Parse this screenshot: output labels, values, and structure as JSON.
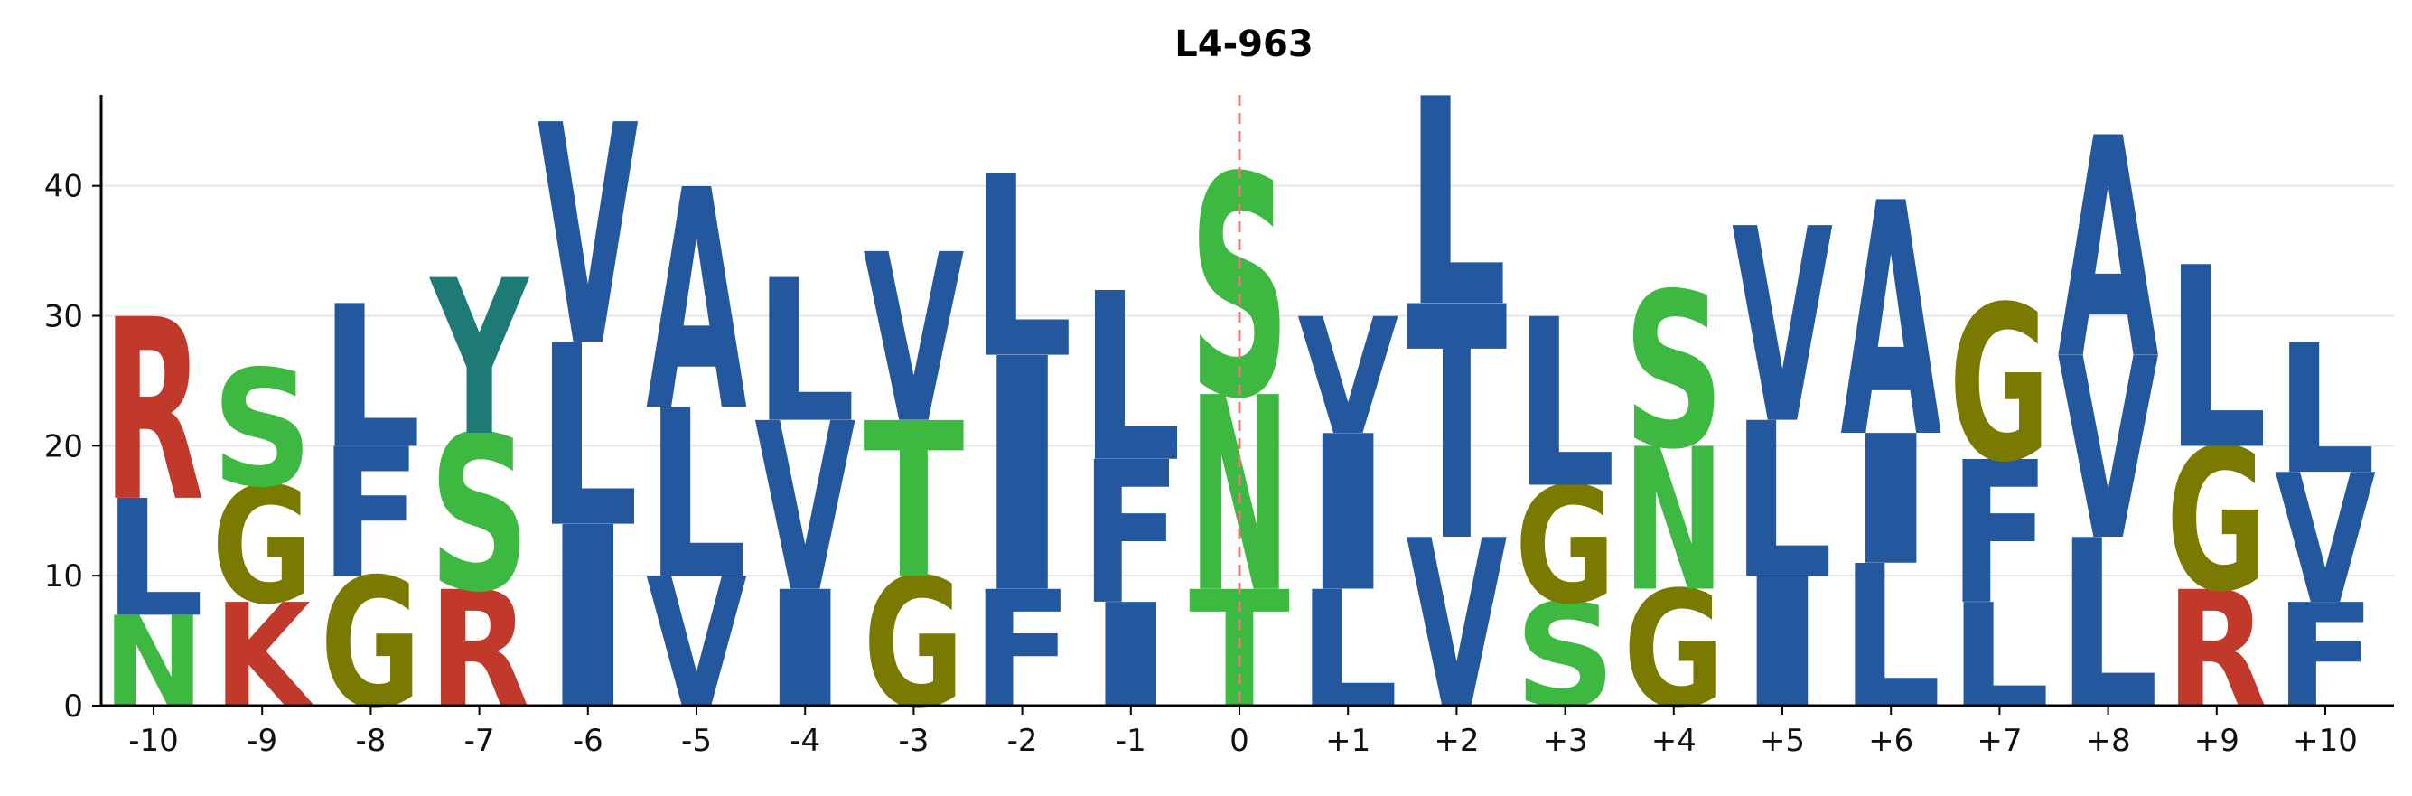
{
  "chart_data": {
    "type": "sequence_logo",
    "title": "L4-963",
    "xlabel": "",
    "ylabel": "",
    "ylim": [
      0,
      47
    ],
    "yticks": [
      0,
      10,
      20,
      30,
      40
    ],
    "grid": true,
    "center_line": {
      "x": "0",
      "style": "dashed",
      "color": "#e87a7a"
    },
    "colors": {
      "hydrophobic": "#24589e",
      "polar": "#3db840",
      "glycine": "#7a7a00",
      "basic": "#c0392b",
      "tyrosine": "#1e7a74"
    },
    "positions": [
      {
        "label": "-10",
        "letters": [
          {
            "aa": "N",
            "count": 7,
            "group": "polar"
          },
          {
            "aa": "L",
            "count": 9,
            "group": "hydrophobic"
          },
          {
            "aa": "R",
            "count": 14,
            "group": "basic"
          }
        ]
      },
      {
        "label": "-9",
        "letters": [
          {
            "aa": "K",
            "count": 8,
            "group": "basic"
          },
          {
            "aa": "G",
            "count": 9,
            "group": "glycine"
          },
          {
            "aa": "S",
            "count": 9,
            "group": "polar"
          }
        ]
      },
      {
        "label": "-8",
        "letters": [
          {
            "aa": "G",
            "count": 10,
            "group": "glycine"
          },
          {
            "aa": "F",
            "count": 10,
            "group": "hydrophobic"
          },
          {
            "aa": "L",
            "count": 11,
            "group": "hydrophobic"
          }
        ]
      },
      {
        "label": "-7",
        "letters": [
          {
            "aa": "R",
            "count": 9,
            "group": "basic"
          },
          {
            "aa": "S",
            "count": 12,
            "group": "polar"
          },
          {
            "aa": "Y",
            "count": 12,
            "group": "tyrosine"
          }
        ]
      },
      {
        "label": "-6",
        "letters": [
          {
            "aa": "I",
            "count": 14,
            "group": "hydrophobic"
          },
          {
            "aa": "L",
            "count": 14,
            "group": "hydrophobic"
          },
          {
            "aa": "V",
            "count": 17,
            "group": "hydrophobic"
          }
        ]
      },
      {
        "label": "-5",
        "letters": [
          {
            "aa": "V",
            "count": 10,
            "group": "hydrophobic"
          },
          {
            "aa": "L",
            "count": 13,
            "group": "hydrophobic"
          },
          {
            "aa": "A",
            "count": 17,
            "group": "hydrophobic"
          }
        ]
      },
      {
        "label": "-4",
        "letters": [
          {
            "aa": "I",
            "count": 9,
            "group": "hydrophobic"
          },
          {
            "aa": "V",
            "count": 13,
            "group": "hydrophobic"
          },
          {
            "aa": "L",
            "count": 11,
            "group": "hydrophobic"
          }
        ]
      },
      {
        "label": "-3",
        "letters": [
          {
            "aa": "G",
            "count": 10,
            "group": "glycine"
          },
          {
            "aa": "T",
            "count": 12,
            "group": "polar"
          },
          {
            "aa": "V",
            "count": 13,
            "group": "hydrophobic"
          }
        ]
      },
      {
        "label": "-2",
        "letters": [
          {
            "aa": "F",
            "count": 9,
            "group": "hydrophobic"
          },
          {
            "aa": "I",
            "count": 18,
            "group": "hydrophobic"
          },
          {
            "aa": "L",
            "count": 14,
            "group": "hydrophobic"
          }
        ]
      },
      {
        "label": "-1",
        "letters": [
          {
            "aa": "I",
            "count": 8,
            "group": "hydrophobic"
          },
          {
            "aa": "F",
            "count": 11,
            "group": "hydrophobic"
          },
          {
            "aa": "L",
            "count": 13,
            "group": "hydrophobic"
          }
        ]
      },
      {
        "label": "0",
        "letters": [
          {
            "aa": "T",
            "count": 9,
            "group": "polar"
          },
          {
            "aa": "N",
            "count": 15,
            "group": "polar"
          },
          {
            "aa": "S",
            "count": 17,
            "group": "polar"
          }
        ]
      },
      {
        "label": "+1",
        "letters": [
          {
            "aa": "L",
            "count": 9,
            "group": "hydrophobic"
          },
          {
            "aa": "I",
            "count": 12,
            "group": "hydrophobic"
          },
          {
            "aa": "V",
            "count": 9,
            "group": "hydrophobic"
          }
        ]
      },
      {
        "label": "+2",
        "letters": [
          {
            "aa": "V",
            "count": 13,
            "group": "hydrophobic"
          },
          {
            "aa": "T",
            "count": 18,
            "group": "hydrophobic"
          },
          {
            "aa": "L",
            "count": 16,
            "group": "hydrophobic"
          }
        ]
      },
      {
        "label": "+3",
        "letters": [
          {
            "aa": "S",
            "count": 8,
            "group": "polar"
          },
          {
            "aa": "G",
            "count": 9,
            "group": "glycine"
          },
          {
            "aa": "L",
            "count": 13,
            "group": "hydrophobic"
          }
        ]
      },
      {
        "label": "+4",
        "letters": [
          {
            "aa": "G",
            "count": 9,
            "group": "glycine"
          },
          {
            "aa": "N",
            "count": 11,
            "group": "polar"
          },
          {
            "aa": "S",
            "count": 12,
            "group": "polar"
          }
        ]
      },
      {
        "label": "+5",
        "letters": [
          {
            "aa": "I",
            "count": 10,
            "group": "hydrophobic"
          },
          {
            "aa": "L",
            "count": 12,
            "group": "hydrophobic"
          },
          {
            "aa": "V",
            "count": 15,
            "group": "hydrophobic"
          }
        ]
      },
      {
        "label": "+6",
        "letters": [
          {
            "aa": "L",
            "count": 11,
            "group": "hydrophobic"
          },
          {
            "aa": "I",
            "count": 10,
            "group": "hydrophobic"
          },
          {
            "aa": "A",
            "count": 18,
            "group": "hydrophobic"
          }
        ]
      },
      {
        "label": "+7",
        "letters": [
          {
            "aa": "L",
            "count": 8,
            "group": "hydrophobic"
          },
          {
            "aa": "F",
            "count": 11,
            "group": "hydrophobic"
          },
          {
            "aa": "G",
            "count": 12,
            "group": "glycine"
          }
        ]
      },
      {
        "label": "+8",
        "letters": [
          {
            "aa": "L",
            "count": 13,
            "group": "hydrophobic"
          },
          {
            "aa": "V",
            "count": 14,
            "group": "hydrophobic"
          },
          {
            "aa": "A",
            "count": 17,
            "group": "hydrophobic"
          }
        ]
      },
      {
        "label": "+9",
        "letters": [
          {
            "aa": "R",
            "count": 9,
            "group": "basic"
          },
          {
            "aa": "G",
            "count": 11,
            "group": "glycine"
          },
          {
            "aa": "L",
            "count": 14,
            "group": "hydrophobic"
          }
        ]
      },
      {
        "label": "+10",
        "letters": [
          {
            "aa": "F",
            "count": 8,
            "group": "hydrophobic"
          },
          {
            "aa": "V",
            "count": 10,
            "group": "hydrophobic"
          },
          {
            "aa": "L",
            "count": 10,
            "group": "hydrophobic"
          }
        ]
      }
    ]
  }
}
